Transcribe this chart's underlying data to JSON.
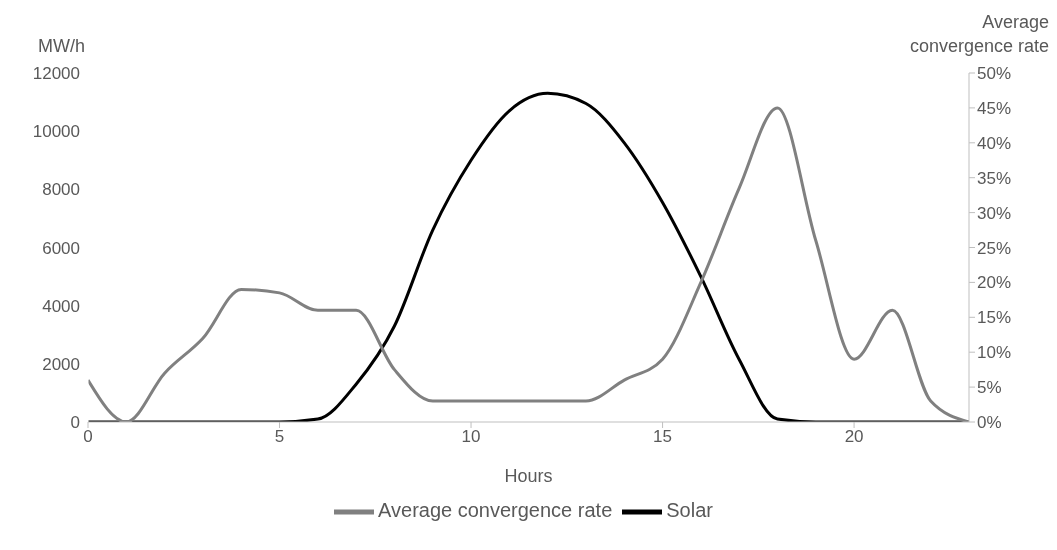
{
  "chart_data": {
    "type": "line",
    "xlabel": "Hours",
    "ylabel": "MW/h",
    "y2label": "Average convergence rate",
    "x": [
      0,
      1,
      2,
      3,
      4,
      5,
      6,
      7,
      8,
      9,
      10,
      11,
      12,
      13,
      14,
      15,
      16,
      17,
      18,
      19,
      20,
      21,
      22,
      23
    ],
    "series": [
      {
        "name": "Solar",
        "color": "#000000",
        "values": [
          0,
          0,
          0,
          0,
          0,
          0,
          100,
          1300,
          3300,
          6600,
          9000,
          10700,
          11300,
          10950,
          9600,
          7550,
          5000,
          2150,
          100,
          0,
          0,
          0,
          0,
          0
        ]
      },
      {
        "name": "Average convergence rate",
        "color": "#808080",
        "axis": "y2",
        "values": [
          6,
          0,
          7,
          12,
          19,
          18.5,
          16,
          16,
          7.5,
          3,
          3,
          3,
          3,
          3,
          6,
          9,
          20,
          33.5,
          45,
          26,
          9,
          16,
          3,
          0
        ]
      }
    ],
    "xlim": [
      0,
      23
    ],
    "xticks": [
      0,
      5,
      10,
      15,
      20
    ],
    "ylim": [
      0,
      12000
    ],
    "yticks": [
      0,
      2000,
      4000,
      6000,
      8000,
      10000,
      12000
    ],
    "y2lim": [
      0,
      50
    ],
    "y2ticks": [
      {
        "value": 0,
        "label": "0%"
      },
      {
        "value": 5,
        "label": "5%"
      },
      {
        "value": 10,
        "label": "10%"
      },
      {
        "value": 15,
        "label": "15%"
      },
      {
        "value": 20,
        "label": "20%"
      },
      {
        "value": 25,
        "label": "25%"
      },
      {
        "value": 30,
        "label": "30%"
      },
      {
        "value": 35,
        "label": "35%"
      },
      {
        "value": 40,
        "label": "40%"
      },
      {
        "value": 45,
        "label": "45%"
      },
      {
        "value": 50,
        "label": "50%"
      }
    ],
    "grid": false,
    "legend": "bottom",
    "marker": "none",
    "line_style": "solid"
  }
}
